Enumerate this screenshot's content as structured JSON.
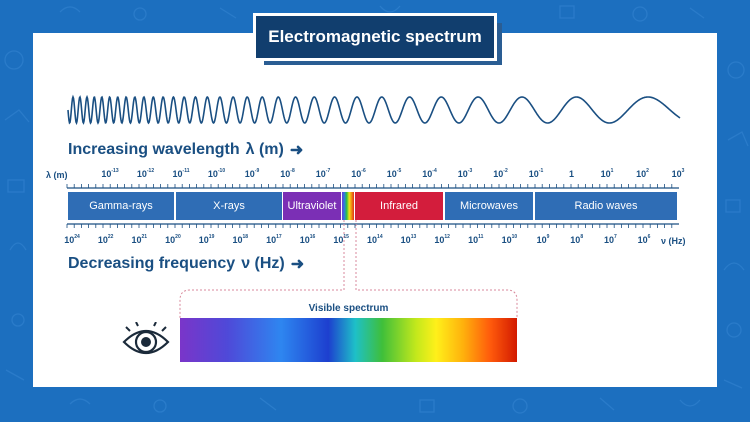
{
  "colors": {
    "background": "#1c6fbf",
    "band_blue": "#2f6db5",
    "ultraviolet": "#7b2fb5",
    "infrared": "#d31d3c",
    "text_dark_blue": "#1a4f82",
    "title_bg": "#113e6e"
  },
  "title": "Electromagnetic spectrum",
  "wavelength_heading": "Increasing wavelength",
  "wavelength_symbol": "λ (m)",
  "frequency_heading": "Decreasing frequency",
  "frequency_symbol": "ν (Hz)",
  "wavelength_unit": "λ (m)",
  "frequency_unit": "ν (Hz)",
  "wavelength_ticks": [
    {
      "base": "10",
      "exp": "-13"
    },
    {
      "base": "10",
      "exp": "-12"
    },
    {
      "base": "10",
      "exp": "-11"
    },
    {
      "base": "10",
      "exp": "-10"
    },
    {
      "base": "10",
      "exp": "-9"
    },
    {
      "base": "10",
      "exp": "-8"
    },
    {
      "base": "10",
      "exp": "-7"
    },
    {
      "base": "10",
      "exp": "-6"
    },
    {
      "base": "10",
      "exp": "-5"
    },
    {
      "base": "10",
      "exp": "-4"
    },
    {
      "base": "10",
      "exp": "-3"
    },
    {
      "base": "10",
      "exp": "-2"
    },
    {
      "base": "10",
      "exp": "-1"
    },
    {
      "base": "1",
      "exp": ""
    },
    {
      "base": "10",
      "exp": "1"
    },
    {
      "base": "10",
      "exp": "2"
    },
    {
      "base": "10",
      "exp": "3"
    }
  ],
  "frequency_ticks": [
    {
      "base": "10",
      "exp": "24"
    },
    {
      "base": "10",
      "exp": "22"
    },
    {
      "base": "10",
      "exp": "21"
    },
    {
      "base": "10",
      "exp": "20"
    },
    {
      "base": "10",
      "exp": "19"
    },
    {
      "base": "10",
      "exp": "18"
    },
    {
      "base": "10",
      "exp": "17"
    },
    {
      "base": "10",
      "exp": "16"
    },
    {
      "base": "10",
      "exp": "15"
    },
    {
      "base": "10",
      "exp": "14"
    },
    {
      "base": "10",
      "exp": "13"
    },
    {
      "base": "10",
      "exp": "12"
    },
    {
      "base": "10",
      "exp": "11"
    },
    {
      "base": "10",
      "exp": "10"
    },
    {
      "base": "10",
      "exp": "9"
    },
    {
      "base": "10",
      "exp": "8"
    },
    {
      "base": "10",
      "exp": "7"
    },
    {
      "base": "10",
      "exp": "6"
    }
  ],
  "bands": [
    {
      "label": "Gamma-rays",
      "color": "#2f6db5"
    },
    {
      "label": "X-rays",
      "color": "#2f6db5"
    },
    {
      "label": "Ultraviolet",
      "color": "#7b2fb5"
    },
    {
      "label": "",
      "color": "rainbow"
    },
    {
      "label": "Infrared",
      "color": "#d31d3c"
    },
    {
      "label": "Microwaves",
      "color": "#2f6db5"
    },
    {
      "label": "Radio waves",
      "color": "#2f6db5"
    }
  ],
  "visible_spectrum_label": "Visible spectrum",
  "icons": {
    "eye": "eye-icon",
    "arrow": "arrow-right-icon"
  }
}
